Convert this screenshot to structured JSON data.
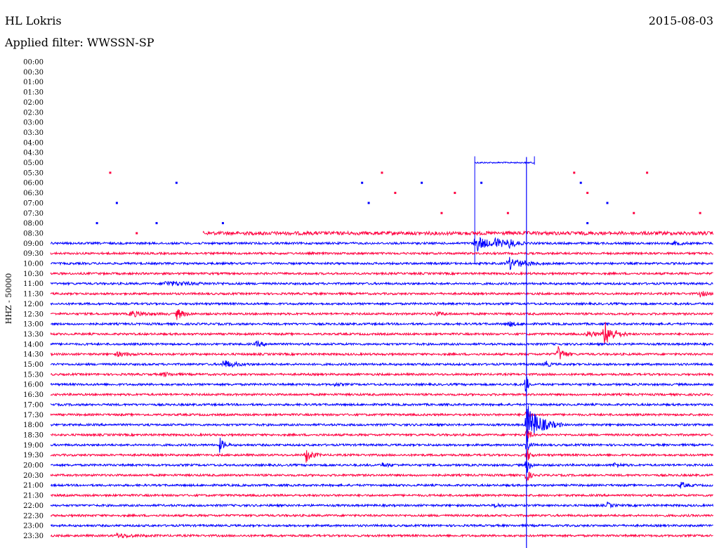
{
  "header": {
    "station": "HL Lokris",
    "date": "2015-08-03",
    "filter": "Applied filter: WWSSN-SP"
  },
  "colors": {
    "even": "#0000ff",
    "odd": "#ff0040"
  },
  "chart_data": {
    "type": "line",
    "title": "HL Lokris",
    "ylabel": "HHZ - 50000",
    "grid": false,
    "traces": [
      {
        "label": "00:00",
        "active": false,
        "start": 1,
        "end": 1,
        "amp": 0,
        "events": []
      },
      {
        "label": "00:30",
        "active": false,
        "start": 1,
        "end": 1,
        "amp": 0,
        "events": []
      },
      {
        "label": "01:00",
        "active": false,
        "start": 1,
        "end": 1,
        "amp": 0,
        "events": []
      },
      {
        "label": "01:30",
        "active": false,
        "start": 1,
        "end": 1,
        "amp": 0,
        "events": []
      },
      {
        "label": "02:00",
        "active": false,
        "start": 1,
        "end": 1,
        "amp": 0,
        "events": []
      },
      {
        "label": "02:30",
        "active": false,
        "start": 1,
        "end": 1,
        "amp": 0,
        "events": []
      },
      {
        "label": "03:00",
        "active": false,
        "start": 1,
        "end": 1,
        "amp": 0,
        "events": []
      },
      {
        "label": "03:30",
        "active": false,
        "start": 1,
        "end": 1,
        "amp": 0,
        "events": []
      },
      {
        "label": "04:00",
        "active": false,
        "start": 1,
        "end": 1,
        "amp": 0,
        "events": []
      },
      {
        "label": "04:30",
        "active": false,
        "start": 1,
        "end": 1,
        "amp": 0,
        "events": []
      },
      {
        "label": "05:00",
        "active": true,
        "start": 0.64,
        "end": 0.73,
        "amp": 1,
        "events": []
      },
      {
        "label": "05:30",
        "active": false,
        "start": 1,
        "end": 1,
        "amp": 0,
        "events": []
      },
      {
        "label": "06:00",
        "active": false,
        "start": 1,
        "end": 1,
        "amp": 0,
        "events": []
      },
      {
        "label": "06:30",
        "active": false,
        "start": 1,
        "end": 1,
        "amp": 0,
        "events": []
      },
      {
        "label": "07:00",
        "active": false,
        "start": 1,
        "end": 1,
        "amp": 0,
        "events": []
      },
      {
        "label": "07:30",
        "active": false,
        "start": 1,
        "end": 1,
        "amp": 0,
        "events": []
      },
      {
        "label": "08:00",
        "active": false,
        "start": 1,
        "end": 1,
        "amp": 0,
        "events": []
      },
      {
        "label": "08:30",
        "active": true,
        "start": 0.23,
        "end": 1,
        "amp": 2.5,
        "events": []
      },
      {
        "label": "09:00",
        "active": true,
        "start": 0,
        "end": 1,
        "amp": 1.5,
        "events": [
          {
            "x": 0.64,
            "amp": 14,
            "dur": 0.015
          },
          {
            "x": 0.67,
            "amp": 8,
            "dur": 0.01
          },
          {
            "x": 0.69,
            "amp": 8,
            "dur": 0.01
          },
          {
            "x": 0.94,
            "amp": 3,
            "dur": 0.01
          }
        ]
      },
      {
        "label": "09:30",
        "active": true,
        "start": 0,
        "end": 1,
        "amp": 1.5,
        "events": []
      },
      {
        "label": "10:00",
        "active": true,
        "start": 0,
        "end": 1,
        "amp": 1.5,
        "events": [
          {
            "x": 0.69,
            "amp": 9,
            "dur": 0.02
          }
        ]
      },
      {
        "label": "10:30",
        "active": true,
        "start": 0,
        "end": 1,
        "amp": 1.5,
        "events": []
      },
      {
        "label": "11:00",
        "active": true,
        "start": 0,
        "end": 1,
        "amp": 1.5,
        "events": [
          {
            "x": 0.17,
            "amp": 3,
            "dur": 0.04
          }
        ]
      },
      {
        "label": "11:30",
        "active": true,
        "start": 0,
        "end": 1,
        "amp": 1.5,
        "events": [
          {
            "x": 0.98,
            "amp": 4,
            "dur": 0.008
          }
        ]
      },
      {
        "label": "12:00",
        "active": true,
        "start": 0,
        "end": 1,
        "amp": 1.5,
        "events": []
      },
      {
        "label": "12:30",
        "active": true,
        "start": 0,
        "end": 1,
        "amp": 1.5,
        "events": [
          {
            "x": 0.12,
            "amp": 4,
            "dur": 0.02
          },
          {
            "x": 0.19,
            "amp": 9,
            "dur": 0.008
          },
          {
            "x": 0.58,
            "amp": 3,
            "dur": 0.01
          }
        ]
      },
      {
        "label": "13:00",
        "active": true,
        "start": 0,
        "end": 1,
        "amp": 1.5,
        "events": [
          {
            "x": 0.69,
            "amp": 4,
            "dur": 0.01
          }
        ]
      },
      {
        "label": "13:30",
        "active": true,
        "start": 0,
        "end": 1,
        "amp": 1.5,
        "events": [
          {
            "x": 0.81,
            "amp": 5,
            "dur": 0.01
          },
          {
            "x": 0.835,
            "amp": 20,
            "dur": 0.012
          }
        ]
      },
      {
        "label": "14:00",
        "active": true,
        "start": 0,
        "end": 1,
        "amp": 1.5,
        "events": [
          {
            "x": 0.31,
            "amp": 4,
            "dur": 0.01
          }
        ]
      },
      {
        "label": "14:30",
        "active": true,
        "start": 0,
        "end": 1,
        "amp": 1.5,
        "events": [
          {
            "x": 0.1,
            "amp": 3,
            "dur": 0.015
          },
          {
            "x": 0.765,
            "amp": 12,
            "dur": 0.008
          }
        ]
      },
      {
        "label": "15:00",
        "active": true,
        "start": 0,
        "end": 1,
        "amp": 1.5,
        "events": [
          {
            "x": 0.26,
            "amp": 6,
            "dur": 0.015
          },
          {
            "x": 0.745,
            "amp": 6,
            "dur": 0.006
          }
        ]
      },
      {
        "label": "15:30",
        "active": true,
        "start": 0,
        "end": 1,
        "amp": 1.5,
        "events": [
          {
            "x": 0.17,
            "amp": 3,
            "dur": 0.01
          }
        ]
      },
      {
        "label": "16:00",
        "active": true,
        "start": 0,
        "end": 1,
        "amp": 1.5,
        "events": [
          {
            "x": 0.43,
            "amp": 4,
            "dur": 0.004
          },
          {
            "x": 0.717,
            "amp": 30,
            "dur": 0.002
          }
        ]
      },
      {
        "label": "16:30",
        "active": true,
        "start": 0,
        "end": 1,
        "amp": 1.5,
        "events": []
      },
      {
        "label": "17:00",
        "active": true,
        "start": 0,
        "end": 1,
        "amp": 1.5,
        "events": []
      },
      {
        "label": "17:30",
        "active": true,
        "start": 0,
        "end": 1,
        "amp": 1.5,
        "events": [
          {
            "x": 0.718,
            "amp": 10,
            "dur": 0.004
          }
        ]
      },
      {
        "label": "18:00",
        "active": true,
        "start": 0,
        "end": 1,
        "amp": 1.5,
        "events": [
          {
            "x": 0.718,
            "amp": 30,
            "dur": 0.018
          }
        ]
      },
      {
        "label": "18:30",
        "active": true,
        "start": 0,
        "end": 1,
        "amp": 1.5,
        "events": [
          {
            "x": 0.718,
            "amp": 14,
            "dur": 0.004
          }
        ]
      },
      {
        "label": "19:00",
        "active": true,
        "start": 0,
        "end": 1,
        "amp": 1.5,
        "events": [
          {
            "x": 0.255,
            "amp": 10,
            "dur": 0.006
          },
          {
            "x": 0.718,
            "amp": 16,
            "dur": 0.004
          }
        ]
      },
      {
        "label": "19:30",
        "active": true,
        "start": 0,
        "end": 1,
        "amp": 1.5,
        "events": [
          {
            "x": 0.385,
            "amp": 11,
            "dur": 0.008
          },
          {
            "x": 0.718,
            "amp": 14,
            "dur": 0.004
          }
        ]
      },
      {
        "label": "20:00",
        "active": true,
        "start": 0,
        "end": 1,
        "amp": 1.5,
        "events": [
          {
            "x": 0.5,
            "amp": 3,
            "dur": 0.01
          },
          {
            "x": 0.718,
            "amp": 14,
            "dur": 0.004
          },
          {
            "x": 0.85,
            "amp": 4,
            "dur": 0.008
          }
        ]
      },
      {
        "label": "20:30",
        "active": true,
        "start": 0,
        "end": 1,
        "amp": 1.5,
        "events": [
          {
            "x": 0.718,
            "amp": 12,
            "dur": 0.004
          }
        ]
      },
      {
        "label": "21:00",
        "active": true,
        "start": 0,
        "end": 1,
        "amp": 1.5,
        "events": [
          {
            "x": 0.95,
            "amp": 5,
            "dur": 0.008
          }
        ]
      },
      {
        "label": "21:30",
        "active": true,
        "start": 0,
        "end": 1,
        "amp": 1.5,
        "events": []
      },
      {
        "label": "22:00",
        "active": true,
        "start": 0,
        "end": 1,
        "amp": 1.5,
        "events": [
          {
            "x": 0.67,
            "amp": 3,
            "dur": 0.008
          },
          {
            "x": 0.84,
            "amp": 4,
            "dur": 0.006
          }
        ]
      },
      {
        "label": "22:30",
        "active": true,
        "start": 0,
        "end": 1,
        "amp": 1.5,
        "events": []
      },
      {
        "label": "23:00",
        "active": true,
        "start": 0,
        "end": 1,
        "amp": 1.5,
        "events": []
      },
      {
        "label": "23:30",
        "active": true,
        "start": 0,
        "end": 1,
        "amp": 1.5,
        "events": [
          {
            "x": 0.1,
            "amp": 3,
            "dur": 0.02
          }
        ]
      }
    ],
    "dots": [
      {
        "row": 11,
        "x": 0.09
      },
      {
        "row": 11,
        "x": 0.5
      },
      {
        "row": 11,
        "x": 0.79
      },
      {
        "row": 11,
        "x": 0.9
      },
      {
        "row": 12,
        "x": 0.19
      },
      {
        "row": 12,
        "x": 0.47
      },
      {
        "row": 12,
        "x": 0.56
      },
      {
        "row": 12,
        "x": 0.65
      },
      {
        "row": 12,
        "x": 0.8
      },
      {
        "row": 13,
        "x": 0.52
      },
      {
        "row": 13,
        "x": 0.61
      },
      {
        "row": 13,
        "x": 0.81
      },
      {
        "row": 14,
        "x": 0.1
      },
      {
        "row": 14,
        "x": 0.48
      },
      {
        "row": 14,
        "x": 0.84
      },
      {
        "row": 15,
        "x": 0.59
      },
      {
        "row": 15,
        "x": 0.69
      },
      {
        "row": 15,
        "x": 0.88
      },
      {
        "row": 15,
        "x": 0.98
      },
      {
        "row": 16,
        "x": 0.07
      },
      {
        "row": 16,
        "x": 0.16
      },
      {
        "row": 16,
        "x": 0.26
      },
      {
        "row": 16,
        "x": 0.81
      },
      {
        "row": 17,
        "x": 0.13
      }
    ],
    "marker_x": 0.718
  }
}
